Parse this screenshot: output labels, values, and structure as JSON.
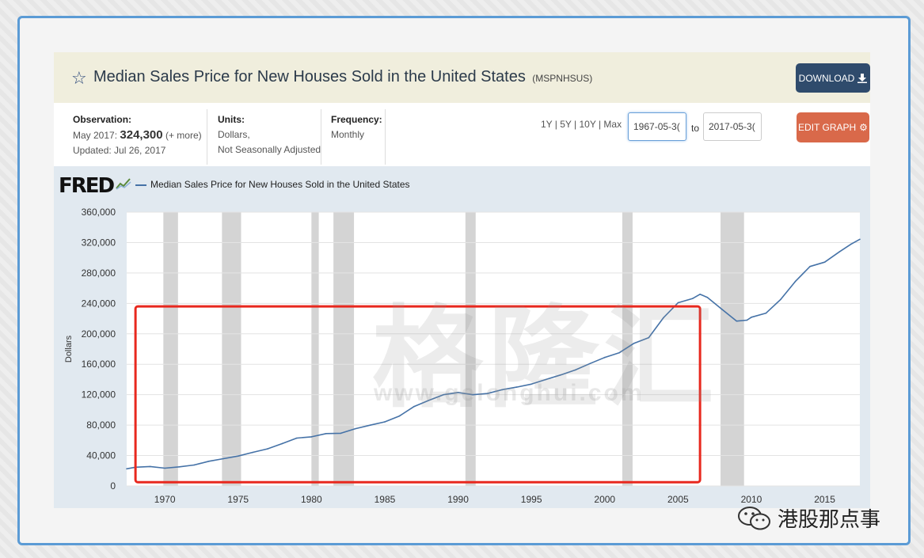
{
  "header": {
    "title": "Median Sales Price for New Houses Sold in the United States",
    "series_id": "(MSPNHSUS)",
    "download_label": "DOWNLOAD"
  },
  "info": {
    "observation_label": "Observation:",
    "observation_period": "May 2017:",
    "observation_value": "324,300",
    "observation_more": "(+ more)",
    "updated": "Updated: Jul 26, 2017",
    "units_label": "Units:",
    "units_line1": "Dollars,",
    "units_line2": "Not Seasonally Adjusted",
    "frequency_label": "Frequency:",
    "frequency_value": "Monthly",
    "range_links": "1Y | 5Y | 10Y | Max",
    "start_date": "1967-05-3(",
    "to_label": "to",
    "end_date": "2017-05-3(",
    "edit_label": "EDIT GRAPH"
  },
  "chart_header": {
    "logo": "FRED",
    "legend": "Median Sales Price for New Houses Sold in the United States"
  },
  "watermark": {
    "chinese": "格隆汇",
    "url": "www.gelonghui.com"
  },
  "footer": {
    "wechat_text": "港股那点事"
  },
  "colors": {
    "series": "#4572a7",
    "recession": "#d4d4d4",
    "highlight_box": "#e8281e",
    "download_btn": "#2f4b6c",
    "edit_btn": "#d9694a",
    "header_bg": "#f0eedd"
  },
  "chart_data": {
    "type": "line",
    "ylabel": "Dollars",
    "xlim": [
      1967.4,
      2017.4
    ],
    "ylim": [
      0,
      360000
    ],
    "y_ticks": [
      0,
      40000,
      80000,
      120000,
      160000,
      200000,
      240000,
      280000,
      320000,
      360000
    ],
    "y_tick_labels": [
      "0",
      "40,000",
      "80,000",
      "120,000",
      "160,000",
      "200,000",
      "240,000",
      "280,000",
      "320,000",
      "360,000"
    ],
    "x_ticks": [
      1970,
      1975,
      1980,
      1985,
      1990,
      1995,
      2000,
      2005,
      2010,
      2015
    ],
    "x_tick_labels": [
      "1970",
      "1975",
      "1980",
      "1985",
      "1990",
      "1995",
      "2000",
      "2005",
      "2010",
      "2015"
    ],
    "recessions": [
      [
        1969.9,
        1970.9
      ],
      [
        1973.9,
        1975.2
      ],
      [
        1980.0,
        1980.5
      ],
      [
        1981.5,
        1982.9
      ],
      [
        1990.5,
        1991.2
      ],
      [
        2001.2,
        2001.9
      ],
      [
        2007.9,
        2009.5
      ]
    ],
    "highlight_box": {
      "x": [
        1968.0,
        2006.5
      ],
      "y": [
        5000,
        236000
      ]
    },
    "series": [
      {
        "name": "Median Sales Price for New Houses Sold in the United States",
        "x": [
          1967.4,
          1968,
          1969,
          1970,
          1971,
          1972,
          1973,
          1974,
          1975,
          1976,
          1977,
          1978,
          1979,
          1980,
          1981,
          1982,
          1983,
          1984,
          1985,
          1986,
          1987,
          1988,
          1989,
          1990,
          1991,
          1992,
          1993,
          1994,
          1995,
          1996,
          1997,
          1998,
          1999,
          2000,
          2001,
          2002,
          2003,
          2004,
          2005,
          2006,
          2006.5,
          2007,
          2008,
          2009,
          2009.7,
          2010,
          2011,
          2012,
          2013,
          2014,
          2015,
          2016,
          2016.8,
          2017.4
        ],
        "y": [
          22600,
          24700,
          25600,
          23400,
          25200,
          27600,
          32500,
          35900,
          39300,
          44200,
          48800,
          55700,
          62900,
          64600,
          68900,
          69300,
          75300,
          79900,
          84300,
          92000,
          104500,
          112500,
          120000,
          122900,
          120000,
          121500,
          126500,
          130000,
          133900,
          140000,
          146000,
          152500,
          161000,
          169000,
          175200,
          187600,
          195000,
          221000,
          240900,
          246500,
          252000,
          247900,
          232100,
          216700,
          218000,
          221800,
          227200,
          245200,
          268900,
          288500,
          294200,
          307800,
          318000,
          324300
        ]
      }
    ]
  }
}
